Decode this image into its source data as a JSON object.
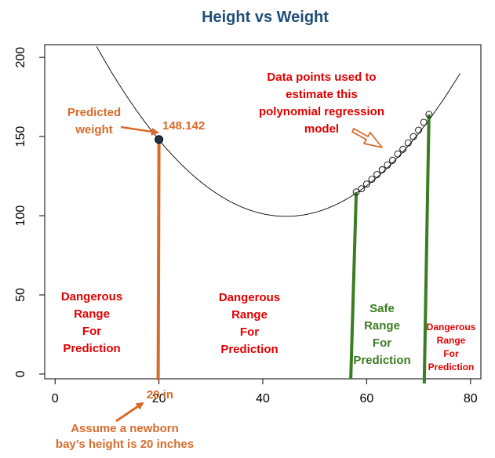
{
  "chart_data": {
    "type": "scatter",
    "title": "Height vs Weight",
    "xlabel": "",
    "ylabel": "",
    "xlim": [
      -2,
      82
    ],
    "ylim": [
      -3,
      208
    ],
    "x_ticks": [
      "0",
      "20",
      "40",
      "60",
      "80"
    ],
    "y_ticks": [
      "0",
      "50",
      "100",
      "150",
      "200"
    ],
    "grid": false,
    "fit_curve": {
      "type": "polynomial",
      "degree": 2,
      "vertex_x": 44.5,
      "vertex_y": 99.6,
      "a": 0.0805
    },
    "data_points": {
      "x": [
        58,
        59,
        60,
        61,
        62,
        63,
        64,
        65,
        66,
        67,
        68,
        69,
        70,
        71,
        72
      ],
      "y": [
        115.0,
        117.0,
        120.0,
        123.0,
        126.0,
        129.0,
        132.0,
        135.0,
        139.0,
        142.0,
        146.0,
        150.0,
        154.0,
        159.0,
        164.0
      ]
    },
    "predicted_point": {
      "x": 20,
      "y": 148.142
    }
  },
  "annotations": {
    "predicted_value": "148.142",
    "predicted_label": [
      "Predicted",
      "weight"
    ],
    "data_points_label": [
      "Data points used to",
      "estimate this",
      "polynomial regression",
      "model"
    ],
    "x_input_label": "20 in",
    "assumption": [
      "Assume a newborn",
      "bay’s height is 20 inches"
    ],
    "danger_left": [
      "Dangerous",
      "Range",
      "For",
      "Prediction"
    ],
    "danger_middle": [
      "Dangerous",
      "Range",
      "For",
      "Prediction"
    ],
    "safe_range": [
      "Safe",
      "Range",
      "For",
      "Prediction"
    ],
    "danger_right": [
      "Dangerous",
      "Range",
      "For",
      "Prediction"
    ]
  },
  "colors": {
    "title": "#1f4e79",
    "danger": "#e00000",
    "safe": "#3a7d22",
    "highlight": "#d86b2a",
    "point_fill": "#1f3347",
    "curve": "#000000"
  }
}
